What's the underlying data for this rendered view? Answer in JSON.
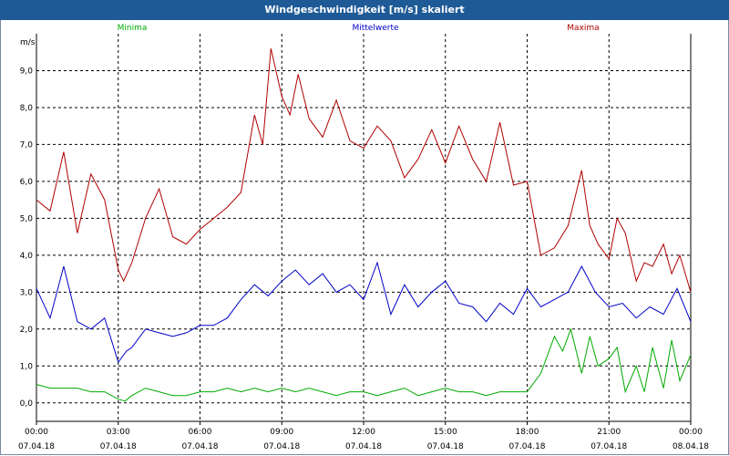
{
  "window": {
    "title": "Windgeschwindigkeit [m/s] skaliert"
  },
  "chart_data": {
    "type": "line",
    "title": "Windgeschwindigkeit [m/s] skaliert",
    "ylabel": "m/s",
    "xlabel": "",
    "ylim": [
      -0.5,
      10.0
    ],
    "xlim": [
      0,
      24
    ],
    "grid": true,
    "legend": "top",
    "y_ticks": [
      "0,0",
      "1,0",
      "2,0",
      "3,0",
      "4,0",
      "5,0",
      "6,0",
      "7,0",
      "8,0",
      "9,0"
    ],
    "x_ticks": [
      {
        "time": "00:00",
        "date": "07.04.18"
      },
      {
        "time": "03:00",
        "date": "07.04.18"
      },
      {
        "time": "06:00",
        "date": "07.04.18"
      },
      {
        "time": "09:00",
        "date": "07.04.18"
      },
      {
        "time": "12:00",
        "date": "07.04.18"
      },
      {
        "time": "15:00",
        "date": "07.04.18"
      },
      {
        "time": "18:00",
        "date": "07.04.18"
      },
      {
        "time": "21:00",
        "date": "07.04.18"
      },
      {
        "time": "00:00",
        "date": "08.04.18"
      }
    ],
    "series": [
      {
        "name": "Minima",
        "color": "#00aa00",
        "x": [
          0,
          0.5,
          1,
          1.5,
          2,
          2.5,
          3,
          3.25,
          3.5,
          4,
          4.5,
          5,
          5.5,
          6,
          6.5,
          7,
          7.5,
          8,
          8.5,
          9,
          9.5,
          10,
          10.5,
          11,
          11.5,
          12,
          12.5,
          13,
          13.5,
          14,
          14.5,
          15,
          15.5,
          16,
          16.5,
          17,
          17.5,
          18,
          18.5,
          19,
          19.3,
          19.6,
          20,
          20.3,
          20.6,
          21,
          21.3,
          21.6,
          22,
          22.3,
          22.6,
          23,
          23.3,
          23.6,
          24
        ],
        "values": [
          0.5,
          0.4,
          0.4,
          0.4,
          0.3,
          0.3,
          0.1,
          0.05,
          0.2,
          0.4,
          0.3,
          0.2,
          0.2,
          0.3,
          0.3,
          0.4,
          0.3,
          0.4,
          0.3,
          0.4,
          0.3,
          0.4,
          0.3,
          0.2,
          0.3,
          0.3,
          0.2,
          0.3,
          0.4,
          0.2,
          0.3,
          0.4,
          0.3,
          0.3,
          0.2,
          0.3,
          0.3,
          0.3,
          0.8,
          1.8,
          1.4,
          2.0,
          0.8,
          1.8,
          1.0,
          1.2,
          1.5,
          0.3,
          1.0,
          0.3,
          1.5,
          0.4,
          1.7,
          0.6,
          1.3
        ]
      },
      {
        "name": "Mittelwerte",
        "color": "#0000c8",
        "x": [
          0,
          0.5,
          1,
          1.5,
          2,
          2.5,
          3,
          3.3,
          3.5,
          4,
          4.5,
          5,
          5.5,
          6,
          6.5,
          7,
          7.5,
          8,
          8.5,
          9,
          9.5,
          10,
          10.5,
          11,
          11.5,
          12,
          12.5,
          13,
          13.5,
          14,
          14.5,
          15,
          15.5,
          16,
          16.5,
          17,
          17.5,
          18,
          18.5,
          19,
          19.5,
          20,
          20.5,
          21,
          21.5,
          22,
          22.5,
          23,
          23.5,
          24
        ],
        "values": [
          3.1,
          2.3,
          3.7,
          2.2,
          2.0,
          2.3,
          1.1,
          1.4,
          1.5,
          2.0,
          1.9,
          1.8,
          1.9,
          2.1,
          2.1,
          2.3,
          2.8,
          3.2,
          2.9,
          3.3,
          3.6,
          3.2,
          3.5,
          3.0,
          3.2,
          2.8,
          3.8,
          2.4,
          3.2,
          2.6,
          3.0,
          3.3,
          2.7,
          2.6,
          2.2,
          2.7,
          2.4,
          3.1,
          2.6,
          2.8,
          3.0,
          3.7,
          3.0,
          2.6,
          2.7,
          2.3,
          2.6,
          2.4,
          3.1,
          2.2
        ]
      },
      {
        "name": "Maxima",
        "color": "#b00000",
        "x": [
          0,
          0.5,
          1,
          1.5,
          2,
          2.5,
          3,
          3.2,
          3.5,
          4,
          4.5,
          5,
          5.5,
          6,
          6.5,
          7,
          7.5,
          8,
          8.3,
          8.6,
          9,
          9.3,
          9.6,
          10,
          10.5,
          11,
          11.5,
          12,
          12.5,
          13,
          13.5,
          14,
          14.5,
          15,
          15.5,
          16,
          16.5,
          17,
          17.5,
          18,
          18.5,
          19,
          19.5,
          20,
          20.3,
          20.6,
          21,
          21.3,
          21.6,
          22,
          22.3,
          22.6,
          23,
          23.3,
          23.6,
          24
        ],
        "values": [
          5.5,
          5.2,
          6.8,
          4.6,
          6.2,
          5.5,
          3.6,
          3.3,
          3.8,
          5.0,
          5.8,
          4.5,
          4.3,
          4.7,
          5.0,
          5.3,
          5.7,
          7.8,
          7.0,
          9.6,
          8.3,
          7.8,
          8.9,
          7.7,
          7.2,
          8.2,
          7.1,
          6.9,
          7.5,
          7.1,
          6.1,
          6.6,
          7.4,
          6.5,
          7.5,
          6.6,
          6.0,
          7.6,
          5.9,
          6.0,
          4.0,
          4.2,
          4.8,
          6.3,
          4.8,
          4.3,
          3.9,
          5.0,
          4.6,
          3.3,
          3.8,
          3.7,
          4.3,
          3.5,
          4.0,
          3.0
        ]
      }
    ]
  }
}
